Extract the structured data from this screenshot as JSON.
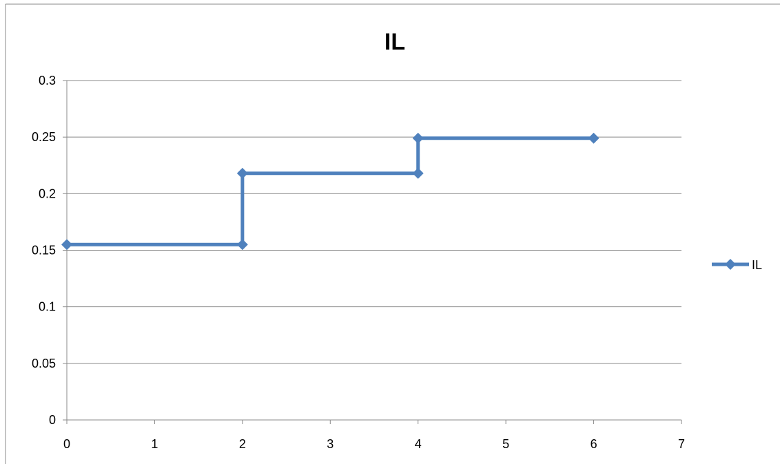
{
  "chart_data": {
    "type": "line",
    "title": "IL",
    "xlabel": "",
    "ylabel": "",
    "xlim": [
      0,
      7
    ],
    "ylim": [
      0,
      0.3
    ],
    "x_ticks": [
      "0",
      "1",
      "2",
      "3",
      "4",
      "5",
      "6",
      "7"
    ],
    "y_ticks": [
      "0",
      "0.05",
      "0.1",
      "0.15",
      "0.2",
      "0.25",
      "0.3"
    ],
    "grid": "horizontal",
    "legend_position": "right",
    "series": [
      {
        "name": "IL",
        "color": "#4F81BD",
        "marker": "diamond",
        "points": [
          {
            "x": 0,
            "y": 0.155
          },
          {
            "x": 2,
            "y": 0.155
          },
          {
            "x": 2,
            "y": 0.218
          },
          {
            "x": 4,
            "y": 0.218
          },
          {
            "x": 4,
            "y": 0.249
          },
          {
            "x": 6,
            "y": 0.249
          }
        ]
      }
    ]
  }
}
